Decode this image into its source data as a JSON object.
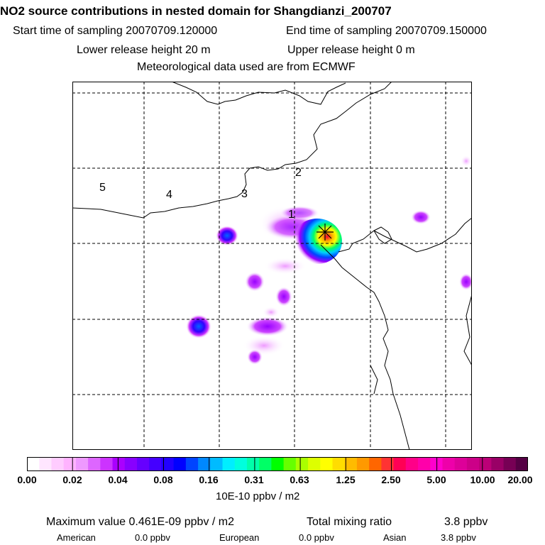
{
  "header": {
    "title": "NO2 source contributions in nested domain for Shangdianzi_200707",
    "start_time": "Start time of sampling 20070709.120000",
    "end_time": "End time of sampling 20070709.150000",
    "lower_release": "Lower release height   20 m",
    "upper_release": "Upper release height    0 m",
    "met_data": "Meteorological data used are from ECMWF"
  },
  "map": {
    "region_labels": [
      "1",
      "2",
      "3",
      "4",
      "5"
    ],
    "station_marker": "receptor-star-icon",
    "colors": {
      "land_outline": "#000000",
      "grid": "#000000"
    }
  },
  "colorbar": {
    "ticks": [
      "0.00",
      "0.02",
      "0.04",
      "0.08",
      "0.16",
      "0.31",
      "0.63",
      "1.25",
      "2.50",
      "5.00",
      "10.00",
      "20.00"
    ],
    "colors": [
      "#ffffff",
      "#ffe6ff",
      "#ffccff",
      "#ffb3ff",
      "#ee99ff",
      "#dd66ff",
      "#cc33ff",
      "#aa00ff",
      "#8800ff",
      "#6600ff",
      "#4400ff",
      "#2200ff",
      "#0000ff",
      "#0044ff",
      "#0088ff",
      "#00bbff",
      "#00eeff",
      "#00ffdd",
      "#00ffaa",
      "#00ff66",
      "#00ff00",
      "#66ff00",
      "#aaff00",
      "#ddff00",
      "#ffff00",
      "#ffdd00",
      "#ffbb00",
      "#ff9900",
      "#ff6600",
      "#ff3333",
      "#ff0055",
      "#ff0088",
      "#ff00aa",
      "#ff00cc",
      "#ee00aa",
      "#dd0099",
      "#cc0088",
      "#bb0077",
      "#990066",
      "#770055",
      "#550044"
    ],
    "unit": "10E-10 ppbv / m2"
  },
  "footer": {
    "max_value": "Maximum value  0.461E-09 ppbv / m2",
    "total_label": "Total mixing ratio",
    "total_value": "3.8 ppbv",
    "regions": [
      {
        "name": "American",
        "value": "0.0 ppbv"
      },
      {
        "name": "European",
        "value": "0.0 ppbv"
      },
      {
        "name": "Asian",
        "value": "3.8 ppbv"
      }
    ]
  }
}
